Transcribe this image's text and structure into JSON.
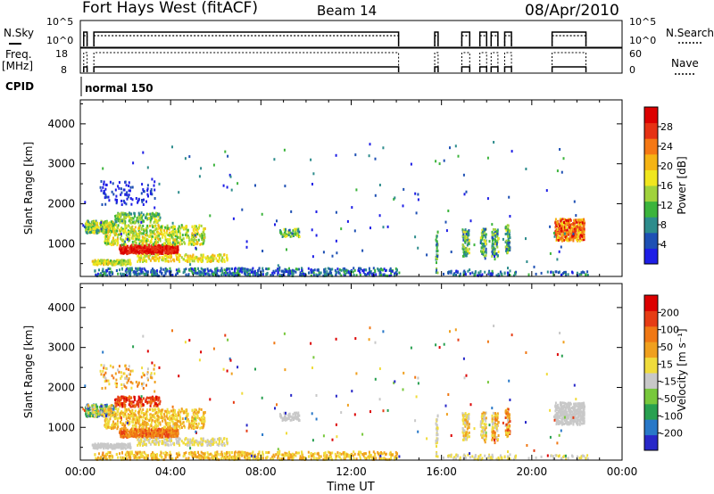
{
  "header": {
    "title": "Fort Hays West (fitACF)",
    "beam": "Beam 14",
    "date": "08/Apr/2010"
  },
  "sky_panel": {
    "left_label": "N.Sky",
    "right_label": "N.Search",
    "left_ticks": [
      "10^5",
      "10^0"
    ],
    "right_ticks": [
      "10^5",
      "10^0"
    ]
  },
  "freq_panel": {
    "left_label_1": "Freq.",
    "left_label_2": "[MHz]",
    "right_label": "Nave",
    "left_ticks": [
      "18",
      "8"
    ],
    "right_ticks": [
      "60",
      "0"
    ]
  },
  "cpid": {
    "label": "CPID",
    "value": "normal 150"
  },
  "chart_data": [
    {
      "type": "heatmap",
      "name": "power",
      "ylabel": "Slant Range [km]",
      "yticks": [
        "4000",
        "3000",
        "2000",
        "1000"
      ],
      "ylim": [
        180,
        4600
      ],
      "xlim_hours": [
        0,
        24
      ],
      "colorbar": {
        "label": "Power [dB]",
        "ticks": [
          "28",
          "24",
          "20",
          "16",
          "12",
          "8",
          "4"
        ],
        "colors": [
          "#1e1ee6",
          "#1e50b4",
          "#2d8c8c",
          "#3cb43c",
          "#a0d23c",
          "#f0e61e",
          "#f5b414",
          "#f57814",
          "#e63214",
          "#dc0000"
        ]
      }
    },
    {
      "type": "heatmap",
      "name": "velocity",
      "ylabel": "Slant Range [km]",
      "yticks": [
        "4000",
        "3000",
        "2000",
        "1000"
      ],
      "ylim": [
        180,
        4600
      ],
      "xlim_hours": [
        0,
        24
      ],
      "colorbar": {
        "label": "Velocity [m s⁻¹]",
        "ticks": [
          "200",
          "100",
          "50",
          "15",
          "-15",
          "-50",
          "-100",
          "-200"
        ],
        "colors": [
          "#2828c8",
          "#2878c8",
          "#28a050",
          "#78c83c",
          "#c8c8c8",
          "#f0dc3c",
          "#f0a01e",
          "#f07814",
          "#e63c14",
          "#dc0000"
        ]
      }
    }
  ],
  "time_axis": {
    "label": "Time UT",
    "ticks": [
      "00:00",
      "04:00",
      "08:00",
      "12:00",
      "16:00",
      "20:00",
      "00:00"
    ]
  }
}
